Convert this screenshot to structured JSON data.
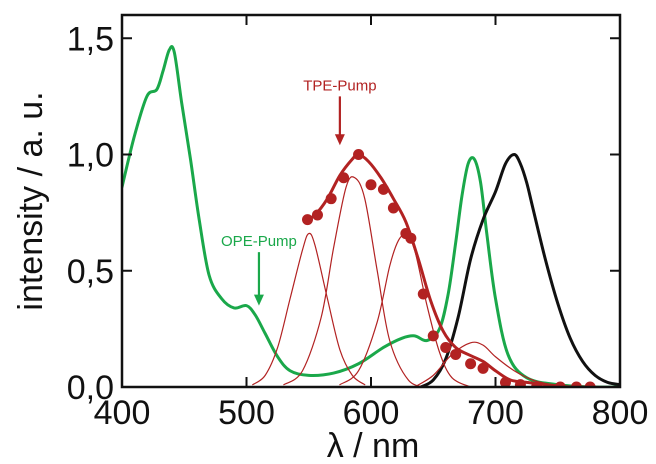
{
  "chart_data": {
    "type": "line",
    "xlabel": "λ / nm",
    "ylabel": "intensity / a. u.",
    "xlim": [
      400,
      800
    ],
    "ylim": [
      0.0,
      1.6
    ],
    "x_ticks": [
      400,
      500,
      600,
      700,
      800
    ],
    "x_tick_labels": [
      "400",
      "500",
      "600",
      "700",
      "800"
    ],
    "y_ticks": [
      0.0,
      0.5,
      1.0,
      1.5
    ],
    "y_tick_labels": [
      "0,0",
      "0,5",
      "1,0",
      "1,5"
    ],
    "grid": false,
    "colors": {
      "green": "#1aa84a",
      "red": "#b22222",
      "black": "#111111"
    },
    "series": [
      {
        "style": "line",
        "color": "#1aa84a",
        "width": 3,
        "x": [
          400,
          410,
          420,
          428,
          433,
          438,
          442,
          448,
          455,
          462,
          470,
          480,
          490,
          500,
          507,
          515,
          525,
          535,
          550,
          570,
          590,
          610,
          625,
          635,
          645,
          655,
          662,
          668,
          673,
          678,
          683,
          688,
          693,
          700,
          710,
          725,
          750,
          780,
          800
        ],
        "y": [
          0.86,
          1.08,
          1.25,
          1.28,
          1.36,
          1.45,
          1.44,
          1.22,
          0.98,
          0.72,
          0.48,
          0.38,
          0.34,
          0.35,
          0.31,
          0.23,
          0.13,
          0.07,
          0.05,
          0.06,
          0.1,
          0.17,
          0.21,
          0.22,
          0.2,
          0.25,
          0.4,
          0.62,
          0.82,
          0.96,
          0.98,
          0.88,
          0.66,
          0.38,
          0.14,
          0.04,
          0.01,
          0.0,
          0.0
        ]
      },
      {
        "style": "line",
        "color": "#111111",
        "width": 3,
        "x": [
          640,
          650,
          660,
          670,
          680,
          690,
          700,
          708,
          715,
          720,
          725,
          730,
          740,
          750,
          760,
          770,
          780,
          790,
          800
        ],
        "y": [
          0.0,
          0.03,
          0.12,
          0.3,
          0.55,
          0.72,
          0.84,
          0.96,
          1.0,
          0.96,
          0.88,
          0.77,
          0.55,
          0.36,
          0.21,
          0.11,
          0.05,
          0.02,
          0.01
        ]
      },
      {
        "style": "line",
        "color": "#b22222",
        "width": 1.2,
        "x": [
          505,
          515,
          525,
          535,
          545,
          550,
          555,
          565,
          575,
          585,
          595
        ],
        "y": [
          0.01,
          0.05,
          0.17,
          0.38,
          0.59,
          0.66,
          0.61,
          0.38,
          0.16,
          0.05,
          0.01
        ]
      },
      {
        "style": "line",
        "color": "#b22222",
        "width": 1.2,
        "x": [
          530,
          545,
          560,
          570,
          580,
          587,
          595,
          605,
          615,
          630,
          645
        ],
        "y": [
          0.01,
          0.07,
          0.3,
          0.6,
          0.86,
          0.9,
          0.81,
          0.5,
          0.2,
          0.03,
          0.0
        ]
      },
      {
        "style": "line",
        "color": "#b22222",
        "width": 1.2,
        "x": [
          575,
          590,
          605,
          615,
          622,
          628,
          635,
          645,
          655,
          665,
          680
        ],
        "y": [
          0.01,
          0.07,
          0.28,
          0.52,
          0.63,
          0.65,
          0.59,
          0.35,
          0.15,
          0.04,
          0.0
        ]
      },
      {
        "style": "line",
        "color": "#b22222",
        "width": 1.2,
        "x": [
          635,
          650,
          665,
          680,
          690,
          700,
          715,
          730,
          745
        ],
        "y": [
          0.0,
          0.05,
          0.14,
          0.19,
          0.18,
          0.13,
          0.07,
          0.03,
          0.01
        ]
      },
      {
        "style": "line",
        "color": "#b22222",
        "width": 3,
        "x": [
          548,
          555,
          565,
          575,
          585,
          590,
          598,
          608,
          618,
          628,
          638,
          648,
          658,
          668,
          678,
          690,
          700,
          712,
          725,
          740,
          760,
          780
        ],
        "y": [
          0.72,
          0.74,
          0.81,
          0.91,
          0.98,
          1.0,
          0.97,
          0.9,
          0.81,
          0.71,
          0.55,
          0.37,
          0.24,
          0.17,
          0.14,
          0.11,
          0.07,
          0.03,
          0.02,
          0.01,
          0.0,
          0.0
        ]
      },
      {
        "style": "scatter",
        "color": "#b22222",
        "size": 5.5,
        "x": [
          549,
          557,
          568,
          578,
          590,
          600,
          610,
          618,
          628,
          632,
          642,
          650,
          660,
          668,
          680,
          690,
          708,
          720,
          733,
          752,
          765,
          776
        ],
        "y": [
          0.72,
          0.74,
          0.81,
          0.9,
          1.0,
          0.87,
          0.85,
          0.77,
          0.66,
          0.64,
          0.4,
          0.22,
          0.17,
          0.14,
          0.1,
          0.08,
          0.02,
          0.01,
          0.0,
          0.0,
          0.0,
          0.0
        ]
      }
    ],
    "annotations": [
      {
        "text": "TPE-Pump",
        "color": "#b22222",
        "arrow_x": 575,
        "arrow_from_y": 1.25,
        "arrow_to_y": 1.04
      },
      {
        "text": "OPE-Pump",
        "color": "#1aa84a",
        "arrow_x": 510,
        "arrow_from_y": 0.58,
        "arrow_to_y": 0.35
      }
    ]
  }
}
